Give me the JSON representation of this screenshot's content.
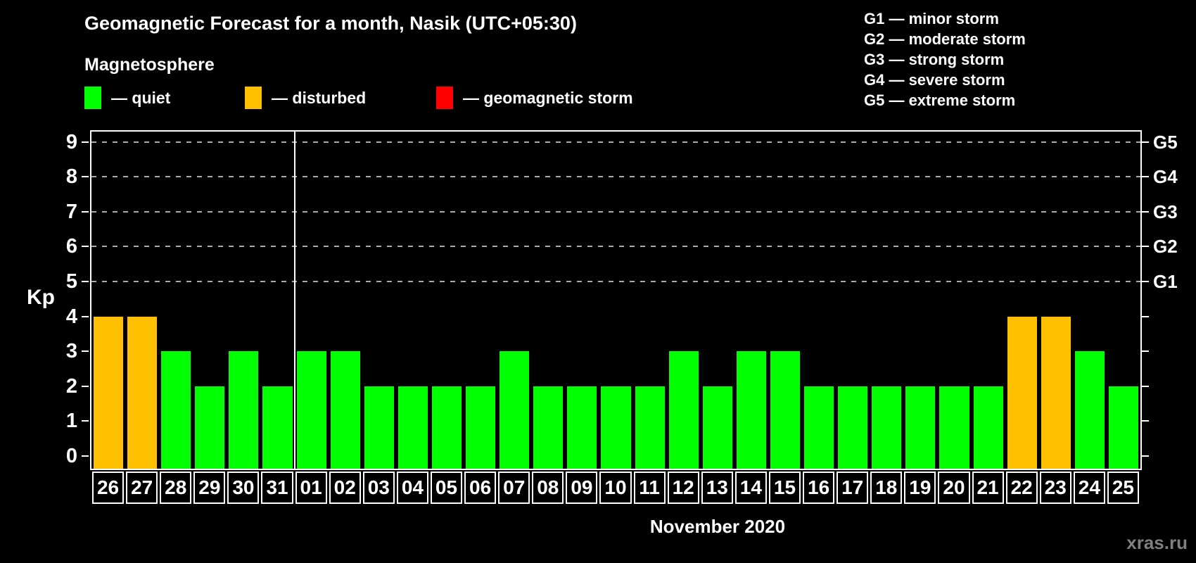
{
  "title": "Geomagnetic Forecast for a month, Nasik (UTC+05:30)",
  "subtitle": "Magnetosphere",
  "legend": {
    "quiet": {
      "label": "— quiet",
      "color": "#00ff00"
    },
    "disturbed": {
      "label": "— disturbed",
      "color": "#ffc000"
    },
    "storm": {
      "label": "— geomagnetic storm",
      "color": "#ff0000"
    }
  },
  "g_legend": [
    "G1 — minor storm",
    "G2 — moderate storm",
    "G3 — strong storm",
    "G4 — severe storm",
    "G5 — extreme storm"
  ],
  "watermark": "xras.ru",
  "chart_data": {
    "type": "bar",
    "title": "Geomagnetic Forecast for a month, Nasik (UTC+05:30)",
    "xlabel": "November 2020",
    "ylabel": "Kp",
    "ylim": [
      0,
      9
    ],
    "y_ticks": [
      0,
      1,
      2,
      3,
      4,
      5,
      6,
      7,
      8,
      9
    ],
    "grid": "dashed horizontal lines at G1–G5 levels only",
    "legend_position": "top-left",
    "categories": [
      "26",
      "27",
      "28",
      "29",
      "30",
      "31",
      "01",
      "02",
      "03",
      "04",
      "05",
      "06",
      "07",
      "08",
      "09",
      "10",
      "11",
      "12",
      "13",
      "14",
      "15",
      "16",
      "17",
      "18",
      "19",
      "20",
      "21",
      "22",
      "23",
      "24",
      "25"
    ],
    "values": [
      4,
      4,
      3,
      2,
      3,
      2,
      3,
      3,
      2,
      2,
      2,
      2,
      3,
      2,
      2,
      2,
      2,
      3,
      2,
      3,
      3,
      2,
      2,
      2,
      2,
      2,
      2,
      4,
      4,
      3,
      2
    ],
    "bar_states": [
      "disturbed",
      "disturbed",
      "quiet",
      "quiet",
      "quiet",
      "quiet",
      "quiet",
      "quiet",
      "quiet",
      "quiet",
      "quiet",
      "quiet",
      "quiet",
      "quiet",
      "quiet",
      "quiet",
      "quiet",
      "quiet",
      "quiet",
      "quiet",
      "quiet",
      "quiet",
      "quiet",
      "quiet",
      "quiet",
      "quiet",
      "quiet",
      "disturbed",
      "disturbed",
      "quiet",
      "quiet"
    ],
    "month_separator_after_category": "31",
    "g_axis": [
      {
        "label": "G1",
        "kp": 5
      },
      {
        "label": "G2",
        "kp": 6
      },
      {
        "label": "G3",
        "kp": 7
      },
      {
        "label": "G4",
        "kp": 8
      },
      {
        "label": "G5",
        "kp": 9
      }
    ]
  }
}
